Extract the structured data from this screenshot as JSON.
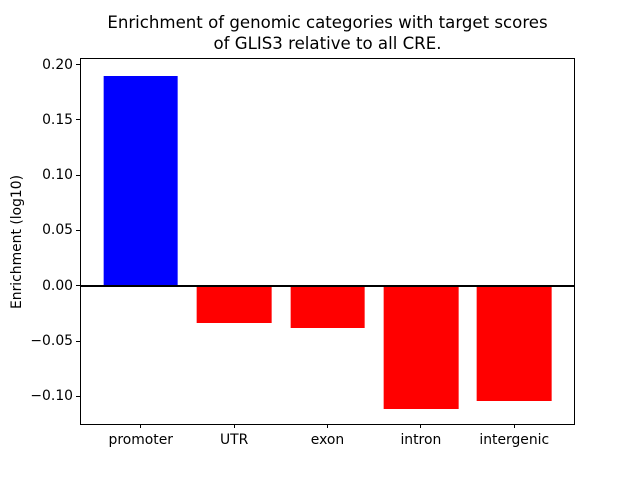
{
  "figure": {
    "background": "#ffffff"
  },
  "chart_data": {
    "type": "bar",
    "title": "Enrichment of genomic categories with target scores\nof GLIS3 relative to all CRE.",
    "xlabel": "",
    "ylabel": "Enrichment (log10)",
    "categories": [
      "promoter",
      "UTR",
      "exon",
      "intron",
      "intergenic"
    ],
    "values": [
      0.19,
      -0.034,
      -0.038,
      -0.111,
      -0.104
    ],
    "bar_colors": [
      "#0000ff",
      "#ff0000",
      "#ff0000",
      "#ff0000",
      "#ff0000"
    ],
    "ylim": [
      -0.125,
      0.205
    ],
    "yticks": [
      0.2,
      0.15,
      0.1,
      0.05,
      0.0,
      -0.05,
      -0.1
    ],
    "ytick_labels": [
      "0.20",
      "0.15",
      "0.10",
      "0.05",
      "0.00",
      "−0.05",
      "−0.10"
    ],
    "bar_width_fraction": 0.8,
    "x_margin": 0.24,
    "zero_line": true,
    "zero_line_color": "#000000",
    "grid": false,
    "legend_position": "none"
  }
}
